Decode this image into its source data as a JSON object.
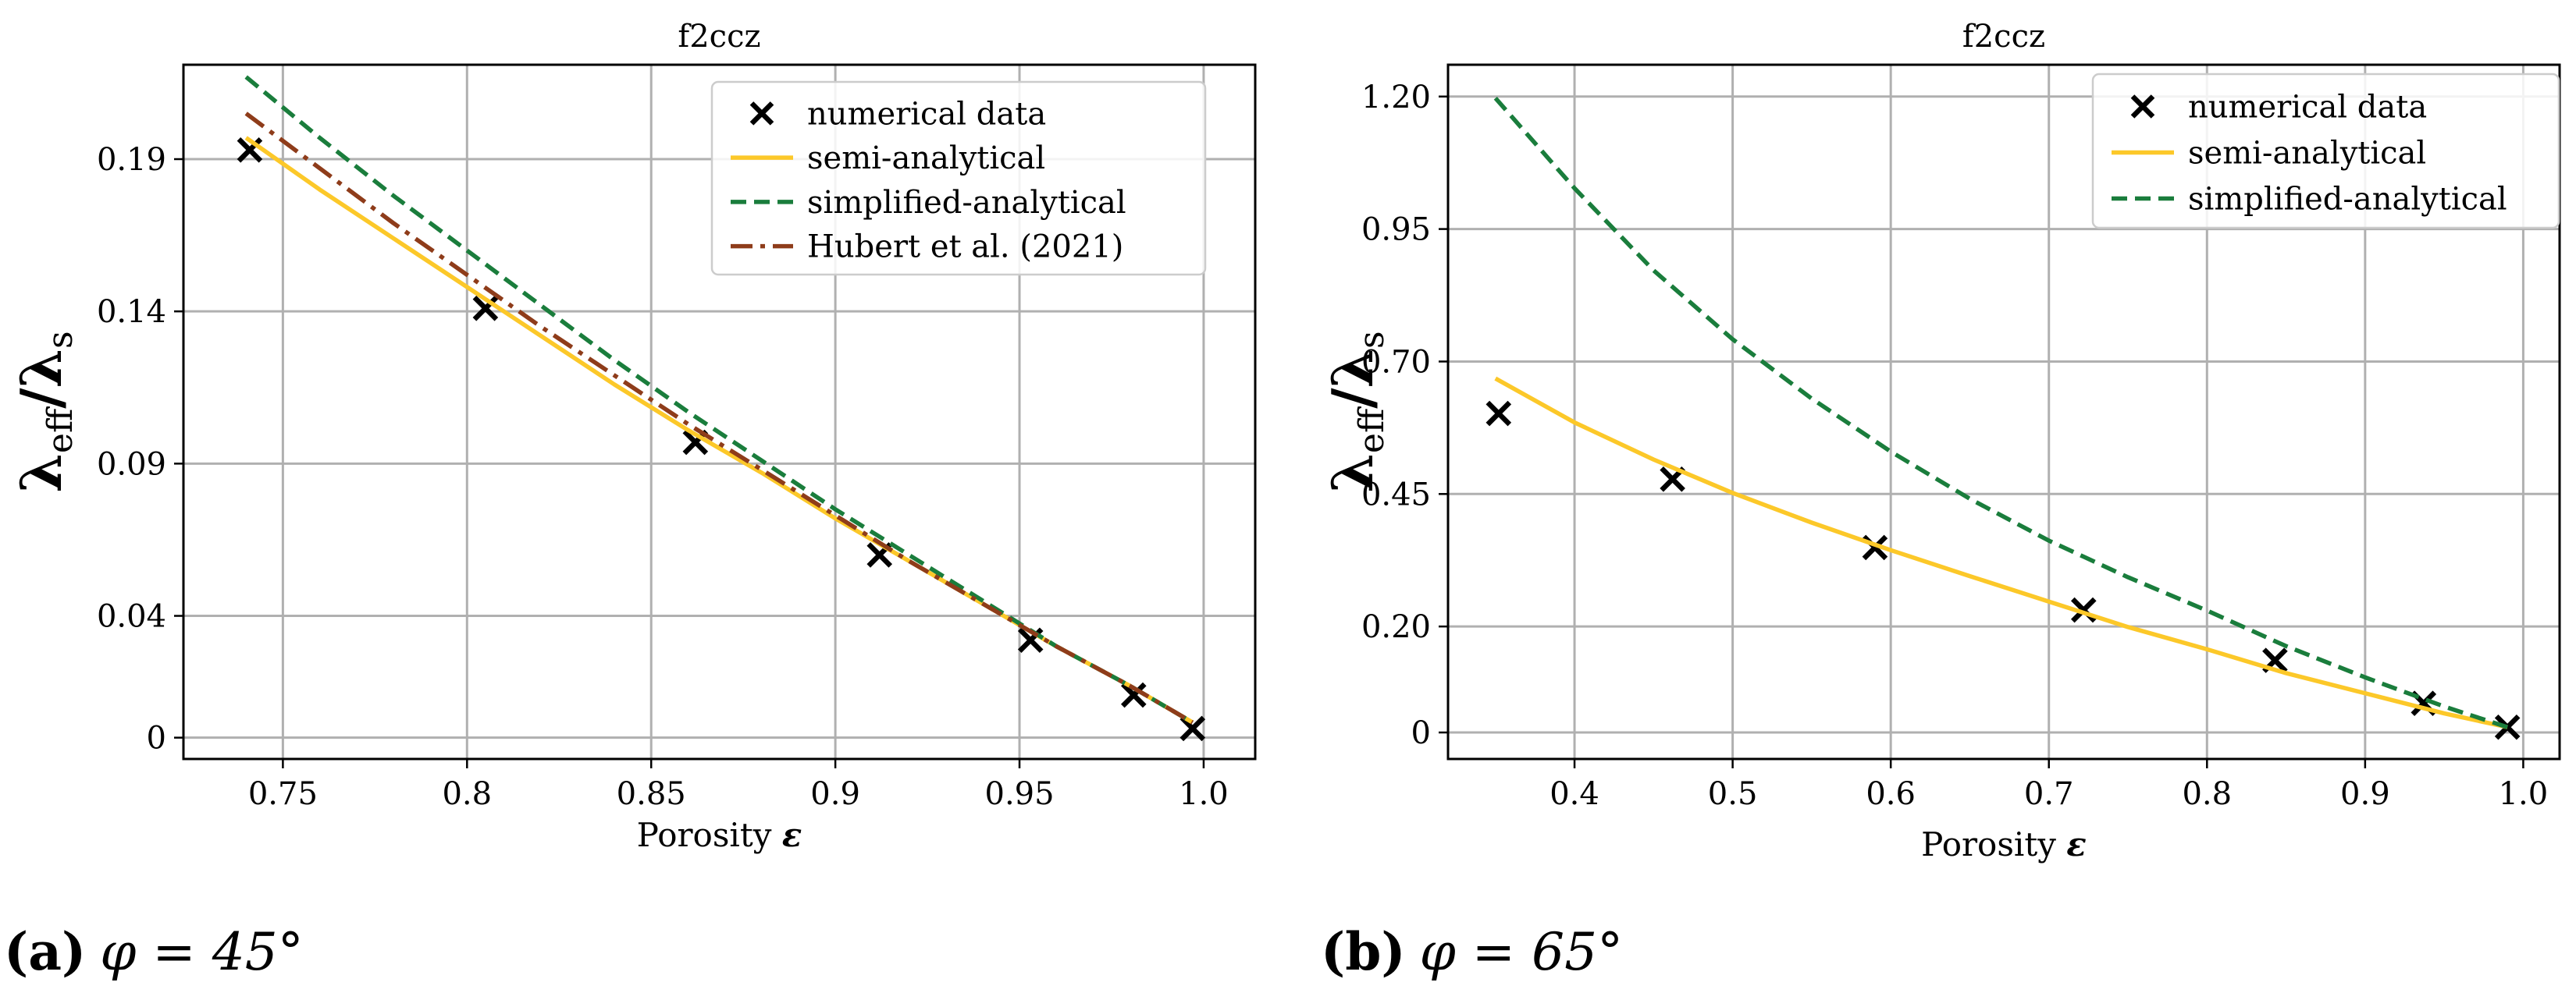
{
  "chart_data": [
    {
      "type": "line",
      "title": "f2ccz",
      "xlabel": "Porosity",
      "xlabel_symbol": "ε",
      "ylabel_main": "λ",
      "ylabel_sub1": "eff",
      "ylabel_sep": "/",
      "ylabel_sub2": "s",
      "xlim": [
        0.723,
        1.014
      ],
      "ylim": [
        -0.007,
        0.221
      ],
      "xticks": [
        0.75,
        0.8,
        0.85,
        0.9,
        0.95,
        1.0
      ],
      "xtick_labels": [
        "0.75",
        "0.8",
        "0.85",
        "0.9",
        "0.95",
        "1.0"
      ],
      "yticks": [
        0,
        0.04,
        0.09,
        0.14,
        0.19
      ],
      "ytick_labels": [
        "0",
        "0.04",
        "0.09",
        "0.14",
        "0.19"
      ],
      "grid": true,
      "legend_position": "top-right",
      "caption_label": "(a)",
      "caption_text": "φ = 45°",
      "series": [
        {
          "name": "numerical data",
          "kind": "marker",
          "color": "#000000",
          "x": [
            0.741,
            0.805,
            0.862,
            0.912,
            0.953,
            0.981,
            0.997
          ],
          "y": [
            0.193,
            0.141,
            0.097,
            0.06,
            0.032,
            0.014,
            0.003
          ]
        },
        {
          "name": "semi-analytical",
          "kind": "solid",
          "color": "#fcc829",
          "x": [
            0.74,
            0.76,
            0.78,
            0.8,
            0.82,
            0.84,
            0.86,
            0.88,
            0.9,
            0.92,
            0.94,
            0.96,
            0.98,
            0.997
          ],
          "y": [
            0.197,
            0.18,
            0.164,
            0.148,
            0.132,
            0.116,
            0.101,
            0.087,
            0.072,
            0.058,
            0.044,
            0.03,
            0.017,
            0.005
          ]
        },
        {
          "name": "simplified-analytical",
          "kind": "dashed",
          "color": "#1a7d3c",
          "x": [
            0.74,
            0.76,
            0.78,
            0.8,
            0.82,
            0.84,
            0.86,
            0.88,
            0.9,
            0.92,
            0.94,
            0.96,
            0.98,
            0.997
          ],
          "y": [
            0.217,
            0.197,
            0.178,
            0.16,
            0.142,
            0.124,
            0.107,
            0.091,
            0.075,
            0.06,
            0.045,
            0.03,
            0.017,
            0.005
          ]
        },
        {
          "name": "Hubert et al. (2021)",
          "kind": "dashdot",
          "color": "#8e3c1a",
          "x": [
            0.74,
            0.76,
            0.78,
            0.8,
            0.82,
            0.84,
            0.86,
            0.88,
            0.9,
            0.92,
            0.94,
            0.96,
            0.98,
            0.997
          ],
          "y": [
            0.205,
            0.187,
            0.169,
            0.152,
            0.135,
            0.119,
            0.103,
            0.088,
            0.073,
            0.058,
            0.044,
            0.03,
            0.017,
            0.005
          ]
        }
      ]
    },
    {
      "type": "line",
      "title": "f2ccz",
      "xlabel": "Porosity",
      "xlabel_symbol": "ε",
      "ylabel_main": "λ",
      "ylabel_sub1": "eff",
      "ylabel_sep": "/",
      "ylabel_sub2": "s",
      "xlim": [
        0.32,
        1.023
      ],
      "ylim": [
        -0.05,
        1.26
      ],
      "xticks": [
        0.4,
        0.5,
        0.6,
        0.7,
        0.8,
        0.9,
        1.0
      ],
      "xtick_labels": [
        "0.4",
        "0.5",
        "0.6",
        "0.7",
        "0.8",
        "0.9",
        "1.0"
      ],
      "yticks": [
        0,
        0.2,
        0.45,
        0.7,
        0.95,
        1.2
      ],
      "ytick_labels": [
        "0",
        "0.20",
        "0.45",
        "0.70",
        "0.95",
        "1.20"
      ],
      "grid": true,
      "legend_position": "top-right",
      "caption_label": "(b)",
      "caption_text": "φ = 65°",
      "series": [
        {
          "name": "numerical data",
          "kind": "marker",
          "color": "#000000",
          "x": [
            0.352,
            0.462,
            0.59,
            0.722,
            0.843,
            0.937,
            0.99
          ],
          "y": [
            0.602,
            0.478,
            0.349,
            0.231,
            0.136,
            0.055,
            0.01
          ]
        },
        {
          "name": "semi-analytical",
          "kind": "solid",
          "color": "#fcc829",
          "x": [
            0.35,
            0.4,
            0.45,
            0.5,
            0.55,
            0.6,
            0.65,
            0.7,
            0.75,
            0.8,
            0.85,
            0.9,
            0.95,
            0.99
          ],
          "y": [
            0.668,
            0.585,
            0.515,
            0.452,
            0.396,
            0.344,
            0.295,
            0.247,
            0.199,
            0.157,
            0.112,
            0.074,
            0.036,
            0.01
          ]
        },
        {
          "name": "simplified-analytical",
          "kind": "dashed",
          "color": "#1a7d3c",
          "x": [
            0.35,
            0.4,
            0.45,
            0.5,
            0.55,
            0.6,
            0.65,
            0.7,
            0.75,
            0.8,
            0.85,
            0.9,
            0.95,
            0.99
          ],
          "y": [
            1.197,
            1.027,
            0.872,
            0.742,
            0.63,
            0.53,
            0.441,
            0.362,
            0.293,
            0.23,
            0.163,
            0.104,
            0.049,
            0.01
          ]
        }
      ]
    }
  ]
}
